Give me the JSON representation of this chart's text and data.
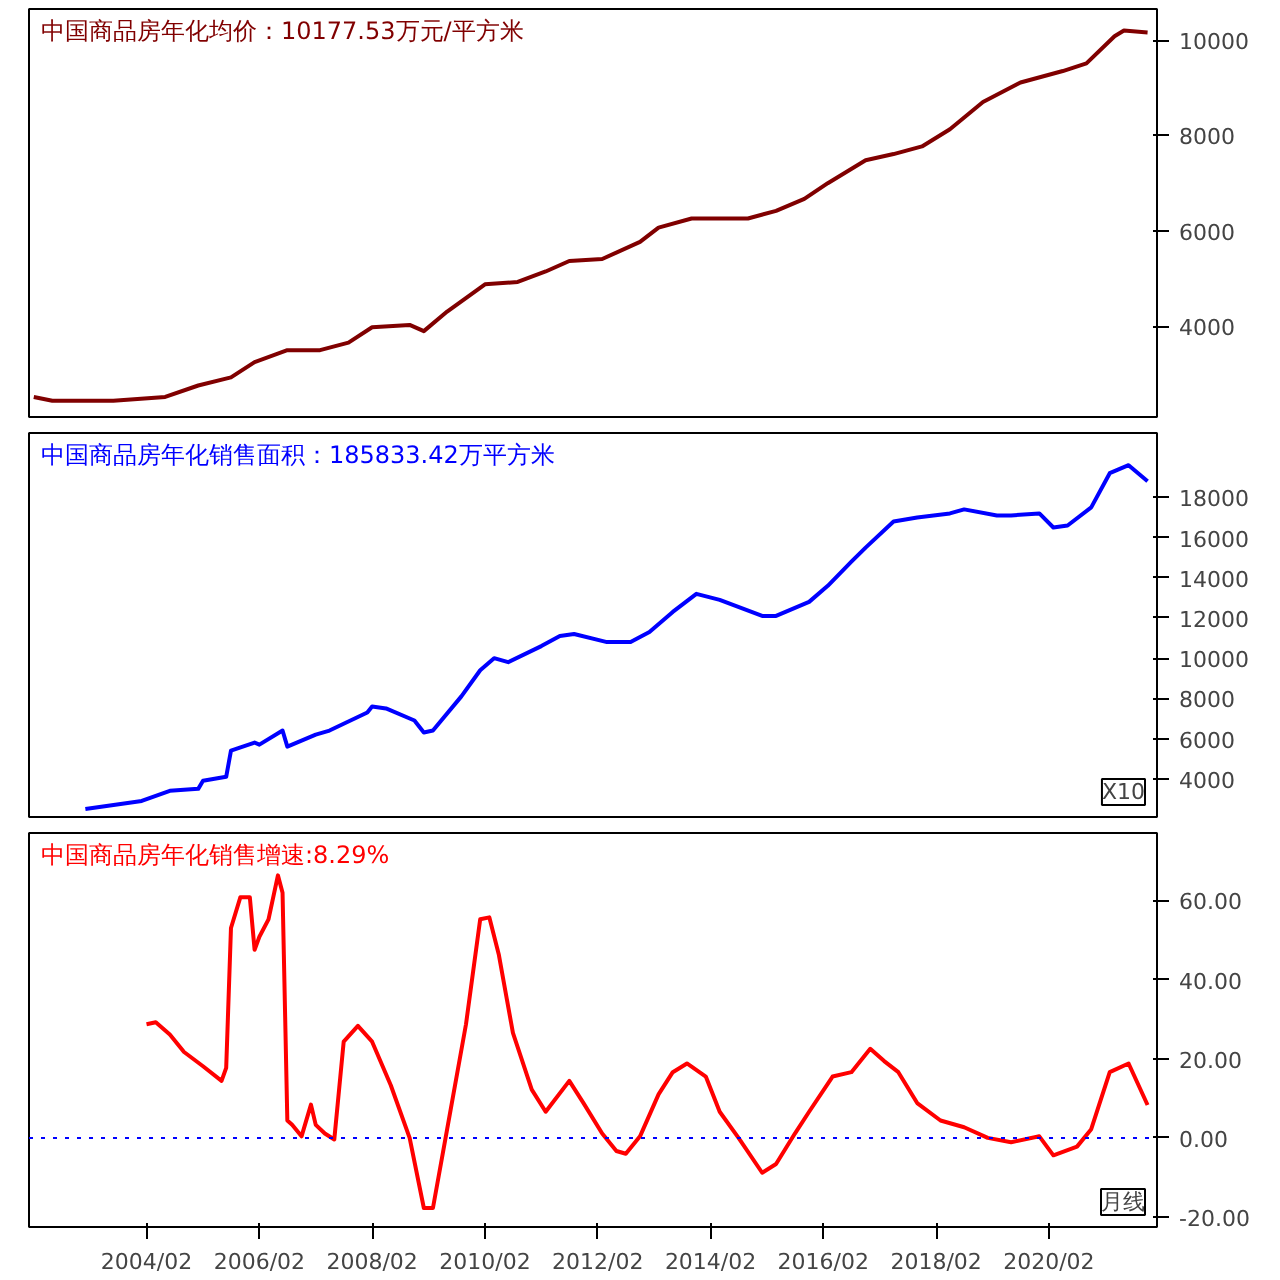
{
  "chart_data": [
    {
      "type": "line",
      "title": "中国商品房年化均价：10177.53万元/平方米",
      "xlim": [
        "2002-01",
        "2022-01"
      ],
      "ylim": [
        2100,
        10650
      ],
      "yticks": [
        4000,
        6000,
        8000,
        10000
      ],
      "tick_labels": "y",
      "grid": false,
      "series": [
        {
          "color": "#800000",
          "x": [
            "2002-02",
            "2002-06",
            "2003-07",
            "2004-06",
            "2005-01",
            "2005-08",
            "2006-01",
            "2006-08",
            "2007-03",
            "2007-09",
            "2008-02",
            "2008-10",
            "2009-01",
            "2009-06",
            "2010-02",
            "2010-09",
            "2011-03",
            "2011-08",
            "2012-03",
            "2012-11",
            "2013-03",
            "2013-10",
            "2014-10",
            "2015-04",
            "2015-10",
            "2016-03",
            "2016-11",
            "2017-05",
            "2017-11",
            "2018-05",
            "2018-12",
            "2019-08",
            "2020-05",
            "2020-10",
            "2021-04",
            "2021-06",
            "2021-11"
          ],
          "values": [
            2520,
            2440,
            2440,
            2520,
            2760,
            2930,
            3250,
            3500,
            3500,
            3660,
            3980,
            4030,
            3900,
            4310,
            4880,
            4930,
            5150,
            5370,
            5410,
            5770,
            6070,
            6260,
            6260,
            6420,
            6670,
            7000,
            7480,
            7610,
            7770,
            8130,
            8700,
            9110,
            9350,
            9510,
            10080,
            10200,
            10160
          ]
        }
      ]
    },
    {
      "type": "line",
      "title": "中国商品房年化销售面积：185833.42万平方米",
      "annotations": [
        "X10"
      ],
      "xlim": [
        "2002-01",
        "2022-01"
      ],
      "ylim": [
        2100,
        21200
      ],
      "yticks": [
        4000,
        6000,
        8000,
        10000,
        12000,
        14000,
        16000,
        18000
      ],
      "tick_labels": "y",
      "grid": false,
      "series": [
        {
          "color": "#0000ff",
          "x": [
            "2003-01",
            "2004-01",
            "2004-07",
            "2005-01",
            "2005-02",
            "2005-07",
            "2005-08",
            "2006-01",
            "2006-02",
            "2006-07",
            "2006-08",
            "2007-02",
            "2007-05",
            "2008-01",
            "2008-02",
            "2008-05",
            "2008-11",
            "2009-01",
            "2009-03",
            "2009-09",
            "2010-01",
            "2010-04",
            "2010-07",
            "2011-02",
            "2011-06",
            "2011-09",
            "2012-04",
            "2012-09",
            "2013-01",
            "2013-06",
            "2013-11",
            "2014-04",
            "2015-01",
            "2015-04",
            "2015-11",
            "2016-03",
            "2016-08",
            "2016-11",
            "2017-05",
            "2017-10",
            "2018-05",
            "2018-08",
            "2019-03",
            "2019-06",
            "2019-12",
            "2020-03",
            "2020-06",
            "2020-11",
            "2021-03",
            "2021-07",
            "2021-11"
          ],
          "values": [
            2500,
            2900,
            3400,
            3500,
            3900,
            4100,
            5400,
            5800,
            5700,
            6400,
            5600,
            6200,
            6400,
            7300,
            7600,
            7500,
            6900,
            6300,
            6400,
            8100,
            9400,
            10000,
            9800,
            10600,
            11100,
            11200,
            10800,
            10800,
            11300,
            12300,
            13200,
            12900,
            12100,
            12100,
            12800,
            13600,
            14800,
            15500,
            16800,
            17000,
            17200,
            17400,
            17100,
            17100,
            17200,
            16500,
            16600,
            17500,
            19200,
            19600,
            18800
          ]
        }
      ]
    },
    {
      "type": "line",
      "title": "中国商品房年化销售增速:8.29%",
      "annotations": [
        "月线"
      ],
      "xlim": [
        "2002-01",
        "2022-01"
      ],
      "ylim": [
        -22.5,
        77
      ],
      "yticks": [
        {
          "value": -20,
          "label": "-20.00"
        },
        {
          "value": 0,
          "label": "0.00"
        },
        {
          "value": 20,
          "label": "20.00"
        },
        {
          "value": 40,
          "label": "40.00"
        },
        {
          "value": 60,
          "label": "60.00"
        }
      ],
      "xticks": [
        {
          "value": "2004-02",
          "label": "2004/02"
        },
        {
          "value": "2006-02",
          "label": "2006/02"
        },
        {
          "value": "2008-02",
          "label": "2008/02"
        },
        {
          "value": "2010-02",
          "label": "2010/02"
        },
        {
          "value": "2012-02",
          "label": "2012/02"
        },
        {
          "value": "2014-02",
          "label": "2014/02"
        },
        {
          "value": "2016-02",
          "label": "2016/02"
        },
        {
          "value": "2018-02",
          "label": "2018/02"
        },
        {
          "value": "2020-02",
          "label": "2020/02"
        }
      ],
      "grid": false,
      "ref_lines": [
        {
          "axis": "y",
          "value": 0,
          "color": "#0000ff",
          "line_style": "dotted"
        }
      ],
      "series": [
        {
          "color": "#ff0000",
          "x": [
            "2004-02",
            "2004-04",
            "2004-07",
            "2004-10",
            "2005-02",
            "2005-06",
            "2005-07",
            "2005-08",
            "2005-10",
            "2005-12",
            "2006-01",
            "2006-02",
            "2006-04",
            "2006-06",
            "2006-07",
            "2006-08",
            "2006-09",
            "2006-11",
            "2007-01",
            "2007-02",
            "2007-04",
            "2007-06",
            "2007-08",
            "2007-11",
            "2008-02",
            "2008-06",
            "2008-10",
            "2009-01",
            "2009-03",
            "2009-06",
            "2009-10",
            "2010-01",
            "2010-03",
            "2010-05",
            "2010-08",
            "2010-12",
            "2011-03",
            "2011-08",
            "2011-11",
            "2012-03",
            "2012-06",
            "2012-08",
            "2012-11",
            "2013-03",
            "2013-06",
            "2013-09",
            "2014-01",
            "2014-04",
            "2014-08",
            "2015-01",
            "2015-04",
            "2015-08",
            "2015-11",
            "2016-04",
            "2016-08",
            "2016-12",
            "2017-03",
            "2017-06",
            "2017-10",
            "2018-03",
            "2018-08",
            "2019-01",
            "2019-06",
            "2019-12",
            "2020-03",
            "2020-08",
            "2020-11",
            "2021-03",
            "2021-07",
            "2021-11"
          ],
          "values": [
            28.7,
            29.2,
            26.1,
            21.7,
            18.1,
            14.4,
            17.7,
            53,
            60.8,
            60.8,
            47.5,
            50.8,
            55.2,
            66.3,
            61.9,
            4.4,
            3.3,
            0.4,
            8.4,
            3.3,
            1.1,
            -0.4,
            24.3,
            28.3,
            24.3,
            13.3,
            0,
            -17.7,
            -17.7,
            2.2,
            28.7,
            55.2,
            55.7,
            46.4,
            26.5,
            12.2,
            6.6,
            14.4,
            8.8,
            1.1,
            -3.3,
            -4,
            0.4,
            11,
            16.6,
            18.8,
            15.5,
            6.6,
            0,
            -8.8,
            -6.6,
            1.1,
            6.6,
            15.5,
            16.6,
            22.5,
            19.4,
            16.6,
            8.8,
            4.4,
            2.7,
            0,
            -1.1,
            0.4,
            -4.4,
            -2.2,
            2.2,
            16.6,
            18.8,
            8.3
          ]
        }
      ]
    }
  ]
}
